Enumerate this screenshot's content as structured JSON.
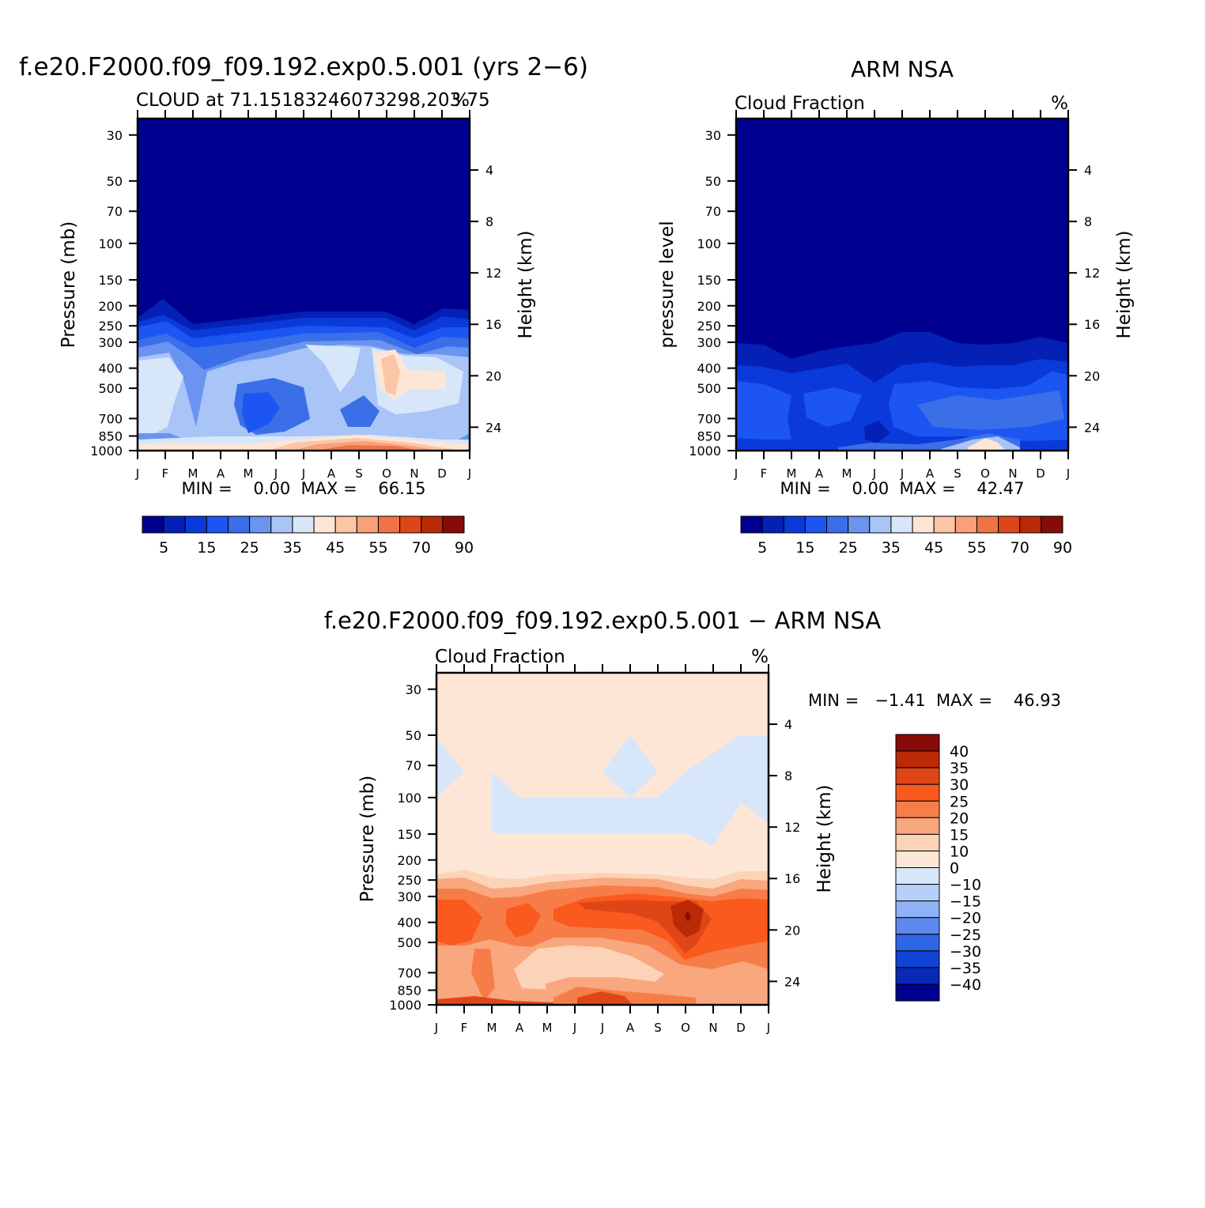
{
  "chart_data": [
    {
      "type": "heatmap",
      "id": "model",
      "title": "f.e20.F2000.f09_f09.192.exp0.5.001 (yrs 2−6)",
      "left_string": "CLOUD at 71.15183246073298,203.75",
      "right_string": "%",
      "ylabel": "Pressure (mb)",
      "ylabel_right": "Height (km)",
      "x": [
        "J",
        "F",
        "M",
        "A",
        "M",
        "J",
        "J",
        "A",
        "S",
        "O",
        "N",
        "D",
        "J"
      ],
      "y_pressure_ticks": [
        30,
        50,
        70,
        100,
        150,
        200,
        250,
        300,
        400,
        500,
        700,
        850,
        1000
      ],
      "y_height_ticks": [
        24,
        20,
        16,
        12,
        8,
        4
      ],
      "ylim": [
        1000,
        25
      ],
      "min_max_text": "MIN =    0.00  MAX =    66.15",
      "min": 0.0,
      "max": 66.15,
      "colorbar_labels": [
        "5",
        "15",
        "25",
        "35",
        "45",
        "55",
        "70",
        "90"
      ],
      "approx_cloud_profile_pct": {
        "pressure": [
          1000,
          850,
          700,
          500,
          400,
          300,
          250,
          200,
          150,
          100,
          30
        ],
        "values": [
          55,
          28,
          30,
          32,
          35,
          30,
          20,
          10,
          2,
          1,
          0
        ]
      }
    },
    {
      "type": "heatmap",
      "id": "obs",
      "title": "ARM NSA",
      "left_string": "Cloud Fraction",
      "right_string": "%",
      "ylabel": "pressure level",
      "ylabel_right": "Height (km)",
      "x": [
        "J",
        "F",
        "M",
        "A",
        "M",
        "J",
        "J",
        "A",
        "S",
        "O",
        "N",
        "D",
        "J"
      ],
      "y_pressure_ticks": [
        30,
        50,
        70,
        100,
        150,
        200,
        250,
        300,
        400,
        500,
        700,
        850,
        1000
      ],
      "y_height_ticks": [
        24,
        20,
        16,
        12,
        8,
        4
      ],
      "ylim": [
        1000,
        25
      ],
      "min_max_text": "MIN =    0.00  MAX =    42.47",
      "min": 0.0,
      "max": 42.47,
      "colorbar_labels": [
        "5",
        "15",
        "25",
        "35",
        "45",
        "55",
        "70",
        "90"
      ]
    },
    {
      "type": "heatmap",
      "id": "diff",
      "title": "f.e20.F2000.f09_f09.192.exp0.5.001 − ARM NSA",
      "left_string": "Cloud Fraction",
      "right_string": "%",
      "ylabel": "Pressure (mb)",
      "ylabel_right": "Height (km)",
      "x": [
        "J",
        "F",
        "M",
        "A",
        "M",
        "J",
        "J",
        "A",
        "S",
        "O",
        "N",
        "D",
        "J"
      ],
      "y_pressure_ticks": [
        30,
        50,
        70,
        100,
        150,
        200,
        250,
        300,
        400,
        500,
        700,
        850,
        1000
      ],
      "y_height_ticks": [
        24,
        20,
        16,
        12,
        8,
        4
      ],
      "ylim": [
        1000,
        25
      ],
      "min_max_text": "MIN =   −1.41  MAX =    46.93",
      "min": -1.41,
      "max": 46.93,
      "colorbar_labels": [
        "40",
        "35",
        "30",
        "25",
        "20",
        "15",
        "10",
        "0",
        "−10",
        "−15",
        "−20",
        "−25",
        "−30",
        "−35",
        "−40"
      ]
    }
  ],
  "colors": {
    "seq": [
      "#000090",
      "#0520b4",
      "#0b3adb",
      "#1c55f2",
      "#3a6fe8",
      "#6a94f0",
      "#a9c4f7",
      "#d8e6fa",
      "#fde6d6",
      "#fbc6a5",
      "#f7a07a",
      "#f07346",
      "#df4617",
      "#bb2a06",
      "#870c07"
    ],
    "diff": [
      "#870c07",
      "#bb2a06",
      "#df4617",
      "#fa5a1e",
      "#f77d48",
      "#f9a77e",
      "#fcd3b7",
      "#fde6d6",
      "#d8e6fa",
      "#b7d0fa",
      "#8eb2f5",
      "#5f89ee",
      "#2f66e8",
      "#0f44d4",
      "#0828b8",
      "#000090"
    ]
  }
}
